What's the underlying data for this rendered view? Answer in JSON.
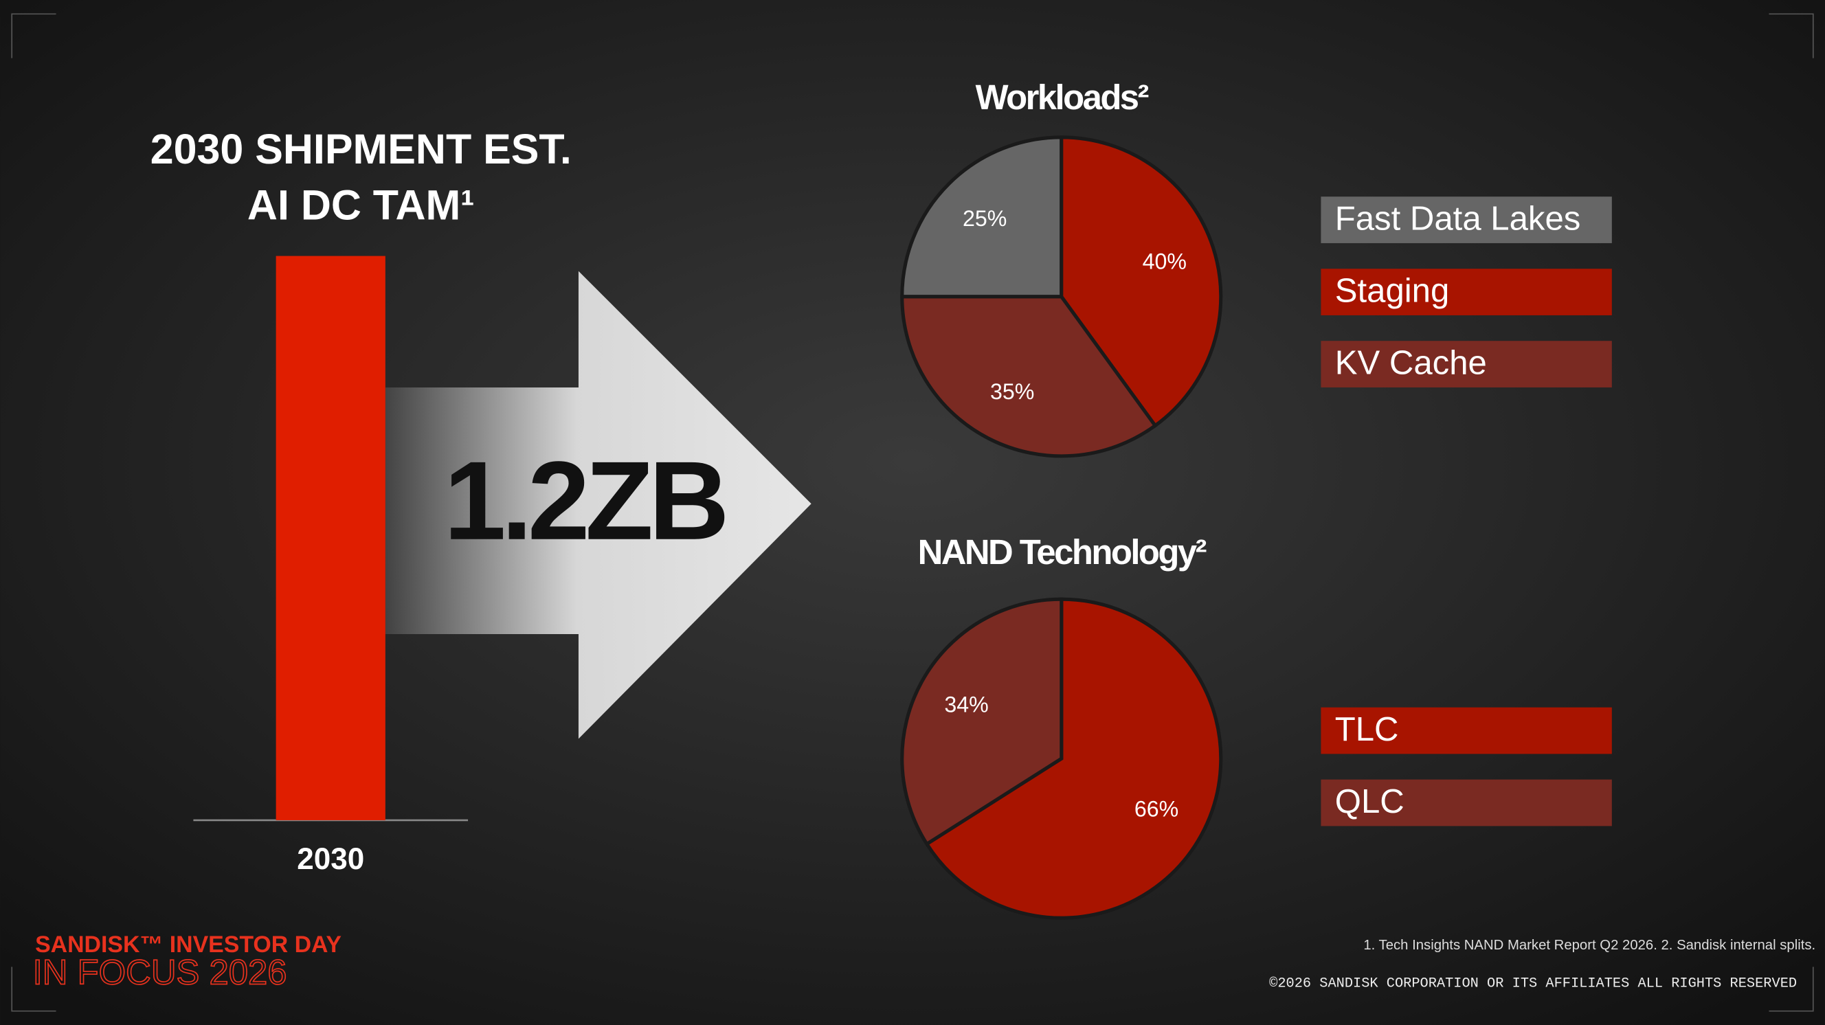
{
  "chart_data": [
    {
      "type": "bar",
      "title": "2030 SHIPMENT EST.",
      "subtitle": "AI DC TAM¹",
      "categories": [
        "2030"
      ],
      "values": [
        1.2
      ],
      "value_labels": [
        "1.2ZB"
      ],
      "color": "#e01e00"
    },
    {
      "type": "pie",
      "title": "Workloads²",
      "categories": [
        "Fast Data Lakes",
        "Staging",
        "KV Cache"
      ],
      "values": [
        25,
        40,
        35
      ],
      "value_labels": [
        "25%",
        "40%",
        "35%"
      ],
      "colors": [
        "#666666",
        "#a81400",
        "#7a2a22"
      ]
    },
    {
      "type": "pie",
      "title": "NAND Technology²",
      "categories": [
        "TLC",
        "QLC"
      ],
      "values": [
        66,
        34
      ],
      "value_labels": [
        "66%",
        "34%"
      ],
      "colors": [
        "#a81400",
        "#7a2a22"
      ]
    }
  ],
  "footer": {
    "brand": "SANDISK™ INVESTOR DAY",
    "event": "IN FOCUS 2026",
    "footnotes": "1. Tech Insights NAND Market Report Q2 2026.  2. Sandisk internal splits.",
    "copyright": "©2026 SANDISK CORPORATION OR ITS AFFILIATES ALL RIGHTS RESERVED"
  }
}
